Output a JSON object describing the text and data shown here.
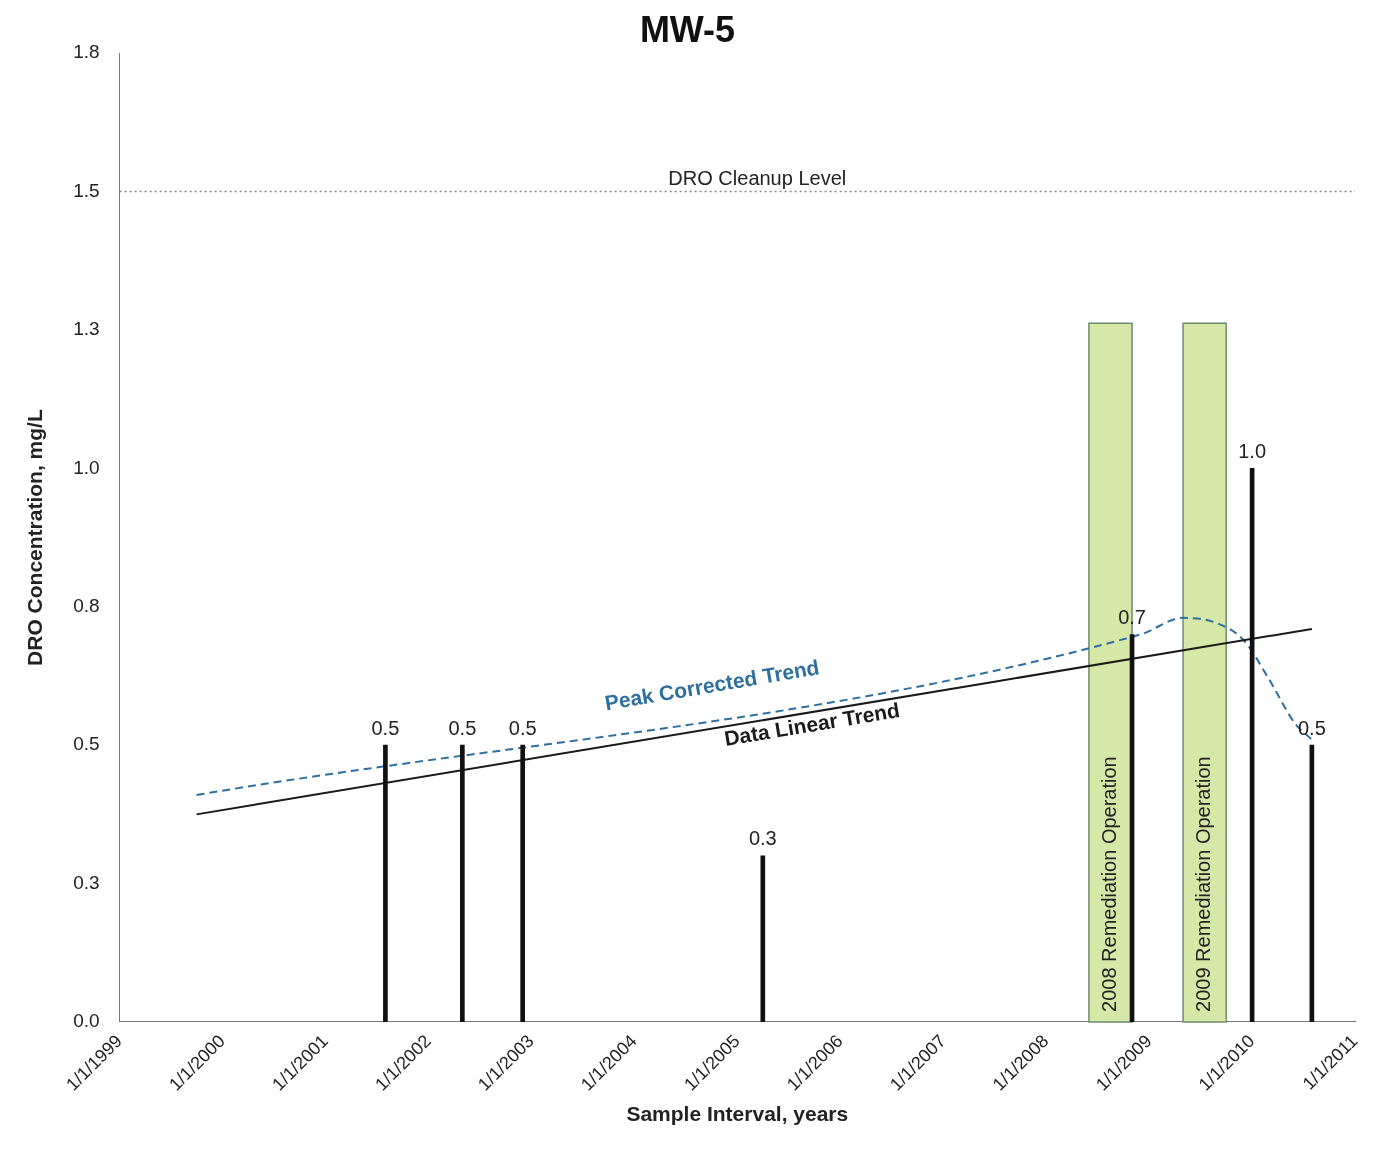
{
  "chart_data": {
    "type": "bar",
    "title": "MW-5",
    "xlabel": "Sample Interval, years",
    "ylabel": "DRO Concentration, mg/L",
    "x": [
      "2001-08",
      "2002-05",
      "2002-12",
      "2005-04",
      "2008-11",
      "2010-01",
      "2010-08"
    ],
    "series": [
      {
        "color": "#111111",
        "values": [
          0.5,
          0.5,
          0.5,
          0.3,
          0.7,
          1.0,
          0.5
        ],
        "value_labels": [
          "0.5",
          "0.5",
          "0.5",
          "0.3",
          "0.7",
          "1.0",
          "0.5"
        ]
      },
      {
        "type": "line",
        "name": "Data Linear Trend",
        "color": "#1a1a1a",
        "line_style": "solid",
        "x": [
          "1999-10",
          "2010-08"
        ],
        "values": [
          0.375,
          0.71
        ]
      },
      {
        "type": "line",
        "name": "Peak Corrected Trend",
        "color": "#2e6f9e",
        "line_style": "dashed",
        "x": [
          "1999-10",
          "2008-12",
          "2009-05",
          "2009-09",
          "2009-12",
          "2010-03",
          "2010-06",
          "2010-08"
        ],
        "values": [
          0.41,
          0.7,
          0.73,
          0.72,
          0.69,
          0.62,
          0.54,
          0.51
        ]
      }
    ],
    "xlim": [
      "1999-01-01",
      "2011-01-01"
    ],
    "xticks": [
      {
        "value": "1999-01-01",
        "label": "1/1/1999"
      },
      {
        "value": "2000-01-01",
        "label": "1/1/2000"
      },
      {
        "value": "2001-01-01",
        "label": "1/1/2001"
      },
      {
        "value": "2002-01-01",
        "label": "1/1/2002"
      },
      {
        "value": "2003-01-01",
        "label": "1/1/2003"
      },
      {
        "value": "2004-01-01",
        "label": "1/1/2004"
      },
      {
        "value": "2005-01-01",
        "label": "1/1/2005"
      },
      {
        "value": "2006-01-01",
        "label": "1/1/2006"
      },
      {
        "value": "2007-01-01",
        "label": "1/1/2007"
      },
      {
        "value": "2008-01-01",
        "label": "1/1/2008"
      },
      {
        "value": "2009-01-01",
        "label": "1/1/2009"
      },
      {
        "value": "2010-01-01",
        "label": "1/1/2010"
      },
      {
        "value": "2011-01-01",
        "label": "1/1/2011"
      }
    ],
    "ylim": [
      0,
      1.75
    ],
    "yticks": [
      {
        "value": 0,
        "label": "0.0"
      },
      {
        "value": 0.25,
        "label": "0.3"
      },
      {
        "value": 0.5,
        "label": "0.5"
      },
      {
        "value": 0.75,
        "label": "0.8"
      },
      {
        "value": 1.0,
        "label": "1.0"
      },
      {
        "value": 1.25,
        "label": "1.3"
      },
      {
        "value": 1.5,
        "label": "1.5"
      },
      {
        "value": 1.75,
        "label": "1.8"
      }
    ],
    "ref_lines": [
      {
        "axis": "y",
        "value": 1.5,
        "label": "DRO Cleanup Level",
        "color": "#888888",
        "line_style": "dotted"
      }
    ],
    "bands": [
      {
        "axis": "x",
        "from": "2008-06",
        "to": "2008-11",
        "label": "2008 Remediation Operation",
        "color": "#d5e8a8"
      },
      {
        "axis": "x",
        "from": "2009-05",
        "to": "2009-10",
        "label": "2009 Remediation Operation",
        "color": "#d5e8a8"
      }
    ],
    "grid": false,
    "legend": false,
    "marker": "none"
  }
}
